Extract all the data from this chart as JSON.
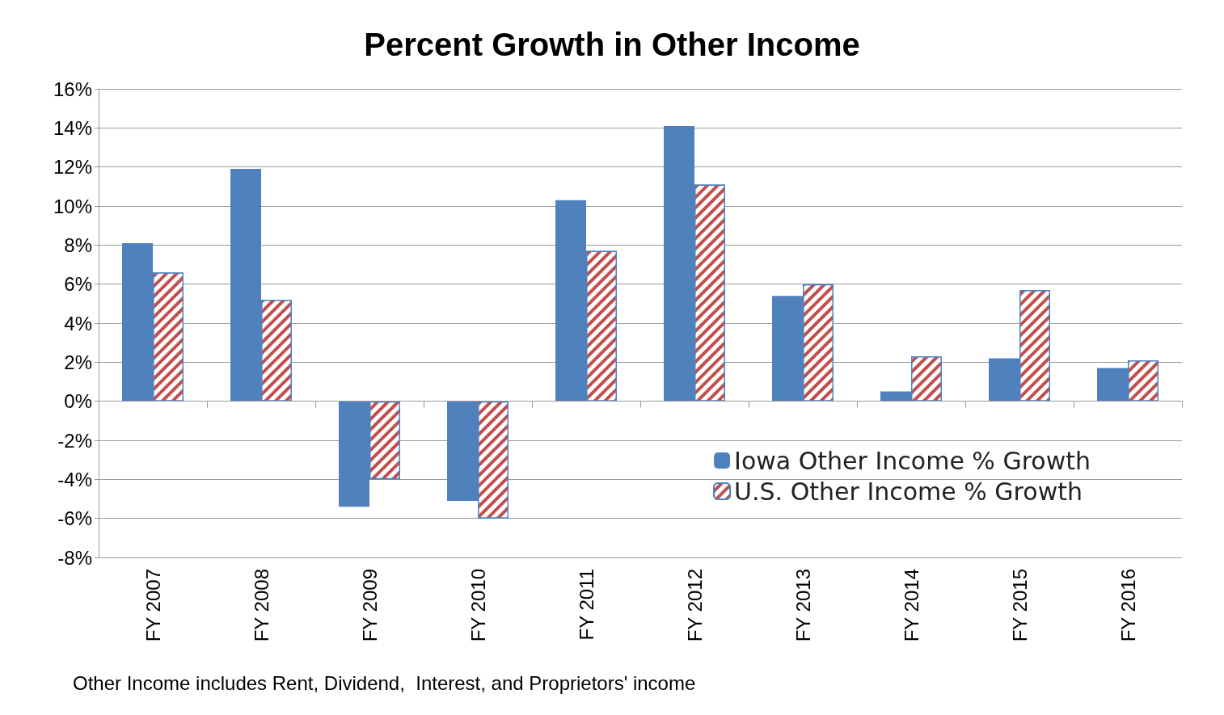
{
  "chart_data": {
    "type": "bar",
    "title": "Percent Growth in Other Income",
    "categories": [
      "FY 2007",
      "FY 2008",
      "FY 2009",
      "FY 2010",
      "FY 2011",
      "FY 2012",
      "FY 2013",
      "FY 2014",
      "FY 2015",
      "FY 2016"
    ],
    "series": [
      {
        "name": "Iowa Other Income % Growth",
        "color": "#4f81bd",
        "values": [
          8.1,
          11.9,
          -5.4,
          -5.1,
          10.3,
          14.1,
          5.4,
          0.5,
          2.2,
          1.7
        ]
      },
      {
        "name": "U.S. Other Income % Growth",
        "color": "#c0504d",
        "values": [
          6.6,
          5.2,
          -4.0,
          -6.0,
          7.7,
          11.1,
          6.0,
          2.3,
          5.7,
          2.1
        ]
      }
    ],
    "ylim": [
      -8,
      16
    ],
    "yticks": [
      {
        "value": -8,
        "label": "-8%"
      },
      {
        "value": -6,
        "label": "-6%"
      },
      {
        "value": -4,
        "label": "-4%"
      },
      {
        "value": -2,
        "label": "-2%"
      },
      {
        "value": 0,
        "label": "0%"
      },
      {
        "value": 2,
        "label": "2%"
      },
      {
        "value": 4,
        "label": "4%"
      },
      {
        "value": 6,
        "label": "6%"
      },
      {
        "value": 8,
        "label": "8%"
      },
      {
        "value": 10,
        "label": "10%"
      },
      {
        "value": 12,
        "label": "12%"
      },
      {
        "value": 14,
        "label": "14%"
      },
      {
        "value": 16,
        "label": "16%"
      }
    ],
    "grid": "y",
    "legend": "right",
    "annotations": [
      "Other Income includes Rent, Dividend,  Interest, and Proprietors' income"
    ]
  }
}
